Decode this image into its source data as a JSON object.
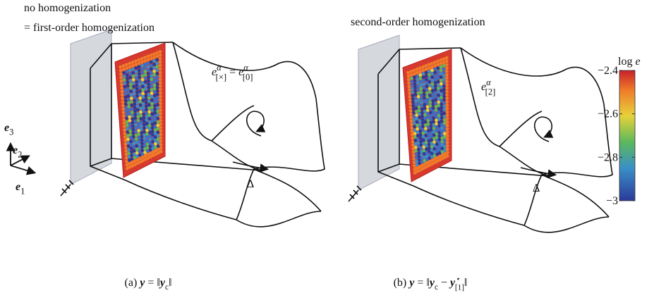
{
  "panels": [
    {
      "heading": [
        "no homogenization",
        "= first-order homogenization"
      ],
      "annotation": [
        {
          "text": "e",
          "style": "italic"
        },
        {
          "text": "α",
          "style": "sup"
        },
        {
          "text": "[×]",
          "style": "sub"
        },
        {
          "text": " = ",
          "style": "normal"
        },
        {
          "text": "e",
          "style": "italic"
        },
        {
          "text": "α",
          "style": "sup"
        },
        {
          "text": "[0]",
          "style": "sub"
        }
      ],
      "load": "Δ",
      "caption": [
        {
          "text": "(a) ",
          "style": "normal"
        },
        {
          "text": "y",
          "style": "bold-italic"
        },
        {
          "text": " = ‖",
          "style": "normal"
        },
        {
          "text": "y",
          "style": "bold-italic"
        },
        {
          "text": "c",
          "style": "sub"
        },
        {
          "text": "‖",
          "style": "normal"
        }
      ]
    },
    {
      "heading": [
        "second-order homogenization"
      ],
      "annotation": [
        {
          "text": "e",
          "style": "italic"
        },
        {
          "text": "α",
          "style": "sup"
        },
        {
          "text": "[2]",
          "style": "sub"
        }
      ],
      "load": "Δ",
      "caption": [
        {
          "text": "(b) ",
          "style": "normal"
        },
        {
          "text": "y",
          "style": "bold-italic"
        },
        {
          "text": " = ‖",
          "style": "normal"
        },
        {
          "text": "y",
          "style": "bold-italic"
        },
        {
          "text": "c",
          "style": "sub"
        },
        {
          "text": " − ",
          "style": "normal"
        },
        {
          "text": "y",
          "style": "bold-italic"
        },
        {
          "text": "⋆",
          "style": "sup"
        },
        {
          "text": "[1]",
          "style": "sub"
        },
        {
          "text": "‖",
          "style": "normal"
        }
      ]
    }
  ],
  "triad": [
    [
      {
        "text": "e",
        "style": "bold-italic"
      },
      {
        "text": "3",
        "style": "sub"
      }
    ],
    [
      {
        "text": "e",
        "style": "bold-italic"
      },
      {
        "text": "2",
        "style": "sub"
      }
    ],
    [
      {
        "text": "e",
        "style": "bold-italic"
      },
      {
        "text": "1",
        "style": "sub"
      }
    ]
  ],
  "colorbar": {
    "title": [
      {
        "text": "log",
        "style": "normal"
      },
      {
        "text": " e",
        "style": "italic"
      }
    ],
    "ylim": [
      -3,
      -2.4
    ],
    "yticks": [
      {
        "value": -3,
        "label": "−3"
      },
      {
        "value": -2.8,
        "label": "−2.8"
      },
      {
        "value": -2.6,
        "label": "−2.6"
      },
      {
        "value": -2.4,
        "label": "−2.4"
      }
    ]
  }
}
